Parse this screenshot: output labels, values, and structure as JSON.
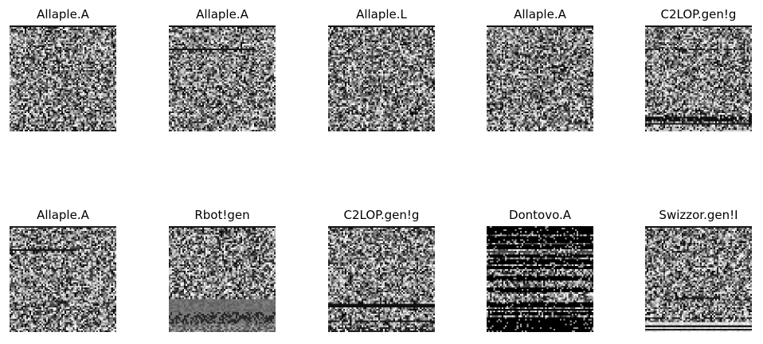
{
  "figure": {
    "image_kind": "grayscale malware byte-visualization",
    "rows": 2,
    "columns": 5,
    "panels": [
      {
        "title": "Allaple.A",
        "texture": "uniform"
      },
      {
        "title": "Allaple.A",
        "texture": "uniform-topline"
      },
      {
        "title": "Allaple.L",
        "texture": "uniform"
      },
      {
        "title": "Allaple.A",
        "texture": "uniform-top"
      },
      {
        "title": "C2LOP.gen!g",
        "texture": "dark-bottom-bands"
      },
      {
        "title": "Allaple.A",
        "texture": "uniform-line"
      },
      {
        "title": "Rbot!gen",
        "texture": "gray-bottom-block"
      },
      {
        "title": "C2LOP.gen!g",
        "texture": "dark-bottom-lines"
      },
      {
        "title": "Dontovo.A",
        "texture": "black-bands"
      },
      {
        "title": "Swizzor.gen!I",
        "texture": "dotted-bottom"
      }
    ]
  }
}
